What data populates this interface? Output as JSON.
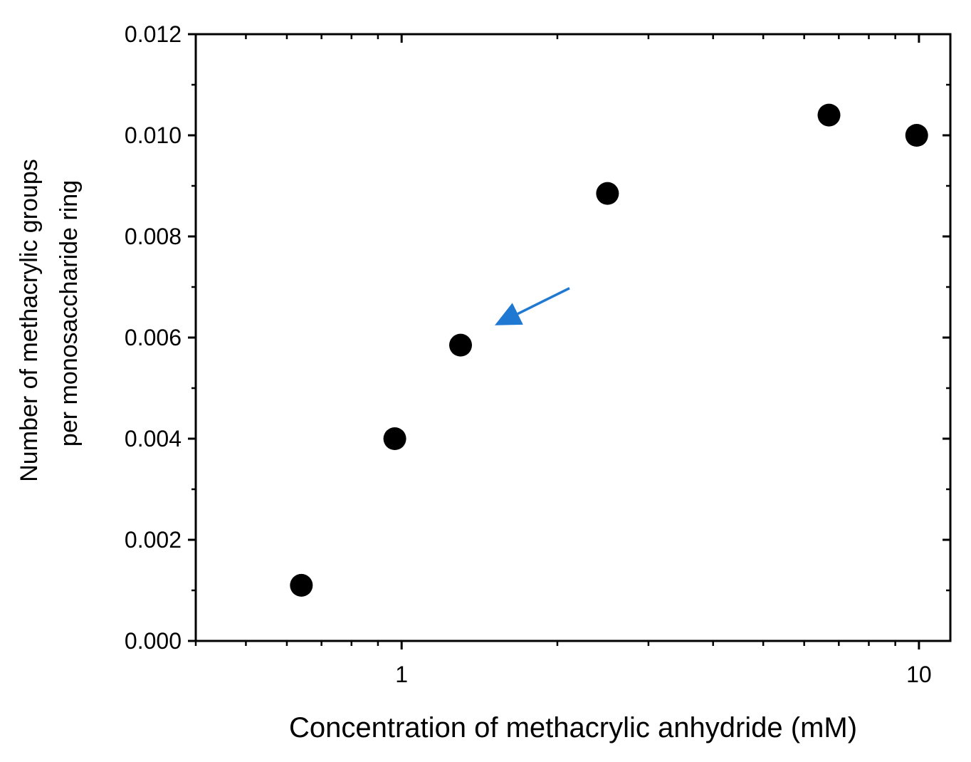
{
  "chart_data": {
    "type": "scatter",
    "xlabel": "Concentration of methacrylic anhydride (mM)",
    "ylabel_lines": [
      "Number of methacrylic groups",
      "per monosaccharide ring"
    ],
    "x_scale": "log",
    "xlim": [
      0.4,
      11.5
    ],
    "ylim": [
      0.0,
      0.012
    ],
    "x_major_ticks": [
      1,
      10
    ],
    "x_tick_labels": [
      "1",
      "10"
    ],
    "y_ticks": [
      0.0,
      0.002,
      0.004,
      0.006,
      0.008,
      0.01,
      0.012
    ],
    "y_tick_labels": [
      "0.000",
      "0.002",
      "0.004",
      "0.006",
      "0.008",
      "0.010",
      "0.012"
    ],
    "grid": false,
    "legend": "none",
    "series": [
      {
        "color": "#000000",
        "marker": "filled-circle",
        "points": [
          {
            "x": 0.64,
            "y": 0.0011
          },
          {
            "x": 0.97,
            "y": 0.004
          },
          {
            "x": 1.3,
            "y": 0.00585
          },
          {
            "x": 2.5,
            "y": 0.00885
          },
          {
            "x": 6.7,
            "y": 0.0104
          },
          {
            "x": 9.9,
            "y": 0.01
          }
        ]
      }
    ],
    "annotations": [
      {
        "type": "arrow",
        "color": "#1f78d1",
        "points_to": {
          "x": 1.3,
          "y": 0.00585
        }
      }
    ]
  }
}
